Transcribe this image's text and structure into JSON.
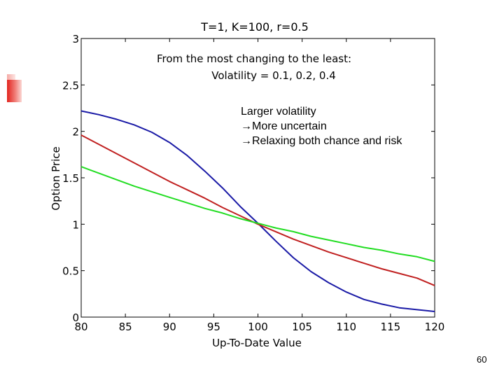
{
  "chart_data": {
    "type": "line",
    "title": "T=1,   K=100, r=0.5",
    "xlabel": "Up-To-Date Value",
    "ylabel": "Option Price",
    "xlim": [
      80,
      120
    ],
    "ylim": [
      0,
      3
    ],
    "x_ticks": [
      "80",
      "85",
      "90",
      "95",
      "100",
      "105",
      "110",
      "115",
      "120"
    ],
    "y_ticks": [
      "0",
      "0.5",
      "1",
      "1.5",
      "2",
      "2.5",
      "3"
    ],
    "grid": false,
    "annotations": [
      "From the most changing to the least:",
      "Volatility = 0.1, 0.2, 0.4"
    ],
    "x": [
      80,
      82,
      84,
      86,
      88,
      90,
      92,
      94,
      96,
      98,
      100,
      102,
      104,
      106,
      108,
      110,
      112,
      114,
      116,
      118,
      120
    ],
    "series": [
      {
        "color": "#1a1aa6",
        "values": [
          2.22,
          2.18,
          2.13,
          2.07,
          1.99,
          1.88,
          1.74,
          1.57,
          1.39,
          1.19,
          1.01,
          0.82,
          0.64,
          0.49,
          0.37,
          0.27,
          0.19,
          0.14,
          0.1,
          0.08,
          0.06
        ]
      },
      {
        "color": "#c02020",
        "values": [
          1.96,
          1.86,
          1.76,
          1.66,
          1.56,
          1.46,
          1.37,
          1.28,
          1.18,
          1.09,
          1.0,
          0.92,
          0.84,
          0.77,
          0.7,
          0.64,
          0.58,
          0.52,
          0.47,
          0.42,
          0.34
        ]
      },
      {
        "color": "#22dd22",
        "values": [
          1.62,
          1.55,
          1.48,
          1.41,
          1.35,
          1.29,
          1.23,
          1.17,
          1.12,
          1.06,
          1.01,
          0.96,
          0.92,
          0.87,
          0.83,
          0.79,
          0.75,
          0.72,
          0.68,
          0.65,
          0.6
        ]
      }
    ]
  },
  "callout": {
    "line1": "Larger volatility",
    "line2": "More uncertain",
    "line3": "Relaxing both chance and risk",
    "arrow": "→"
  },
  "page_number": "60"
}
